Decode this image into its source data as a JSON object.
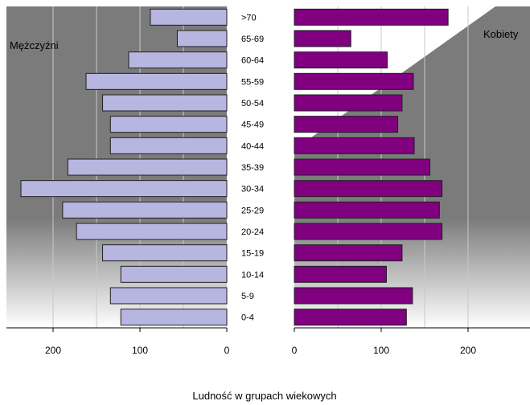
{
  "chart_data": {
    "type": "bar",
    "orientation": "horizontal",
    "layout": "population-pyramid",
    "title": "",
    "xlabel": "Ludność w grupach wiekowych",
    "categories": [
      "0-4",
      "5-9",
      "10-14",
      "15-19",
      "20-24",
      "25-29",
      "30-34",
      "35-39",
      "40-44",
      "45-49",
      "50-54",
      "55-59",
      "60-64",
      "65-69",
      ">70"
    ],
    "left": {
      "label": "Mężczyźni",
      "values": [
        122,
        134,
        122,
        143,
        173,
        189,
        237,
        183,
        134,
        134,
        143,
        162,
        113,
        57,
        88
      ],
      "xlim": [
        0,
        240
      ],
      "ticks": [
        0,
        100,
        200
      ],
      "reversed": true
    },
    "right": {
      "label": "Kobiety",
      "values": [
        129,
        136,
        106,
        124,
        170,
        167,
        170,
        156,
        138,
        119,
        124,
        137,
        107,
        65,
        177
      ],
      "xlim": [
        0,
        240
      ],
      "ticks": [
        0,
        100,
        200
      ]
    },
    "grid": true,
    "colors": {
      "male_fill": "#b7b6e0",
      "female_fill": "#800080",
      "bar_edge": "#1f1f1f",
      "background_dark": "#7b7b7b",
      "background_light": "#ffffff",
      "gridline": "#c8c8c8"
    }
  }
}
